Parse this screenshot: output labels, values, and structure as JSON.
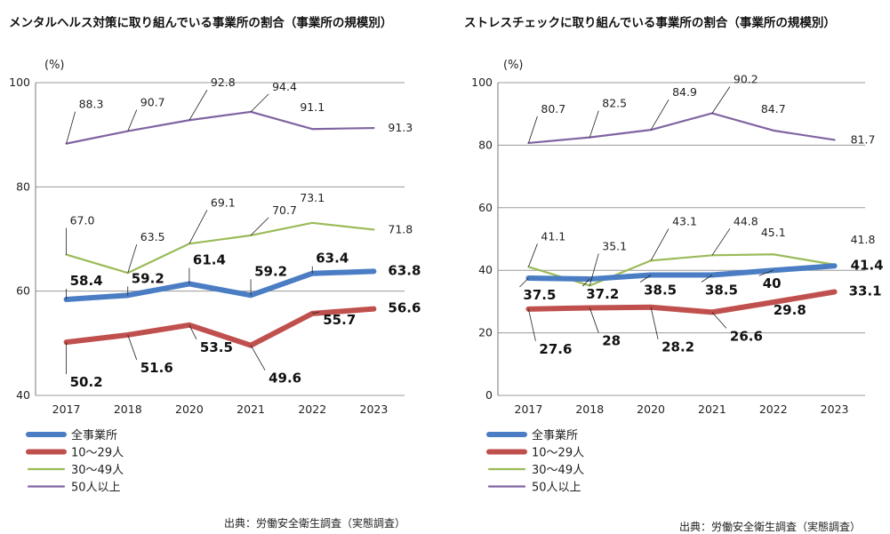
{
  "chart_data": [
    {
      "type": "line",
      "title": "メンタルヘルス対策に取り組んでいる事業所の割合（事業所の規模別）",
      "unit": "(%)",
      "categories": [
        "2017",
        "2018",
        "2020",
        "2021",
        "2022",
        "2023"
      ],
      "ylim": [
        40,
        100
      ],
      "yticks": [
        40,
        60,
        80,
        100
      ],
      "grid": true,
      "legend_position": "bottom-left",
      "series": [
        {
          "name": "全事業所",
          "values": [
            58.4,
            59.2,
            61.4,
            59.2,
            63.4,
            63.8
          ],
          "labels": [
            "58.4",
            "59.2",
            "61.4",
            "59.2",
            "63.4",
            "63.8"
          ],
          "color": "#4a7dc4",
          "bold": true
        },
        {
          "name": "10～29人",
          "values": [
            50.2,
            51.6,
            53.5,
            49.6,
            55.7,
            56.6
          ],
          "labels": [
            "50.2",
            "51.6",
            "53.5",
            "49.6",
            "55.7",
            "56.6"
          ],
          "color": "#c0504d",
          "bold": true
        },
        {
          "name": "30～49人",
          "values": [
            67.0,
            63.5,
            69.1,
            70.7,
            73.1,
            71.8
          ],
          "labels": [
            "67.0",
            "63.5",
            "69.1",
            "70.7",
            "73.1",
            "71.8"
          ],
          "color": "#9bbb59",
          "bold": false
        },
        {
          "name": "50人以上",
          "values": [
            88.3,
            90.7,
            92.8,
            94.4,
            91.1,
            91.3
          ],
          "labels": [
            "88.3",
            "90.7",
            "92.8",
            "94.4",
            "91.1",
            "91.3"
          ],
          "color": "#8064a2",
          "bold": false
        }
      ],
      "source": "出典：労働安全衛生調査（実態調査）"
    },
    {
      "type": "line",
      "title": "ストレスチェックに取り組んでいる事業所の割合（事業所の規模別）",
      "unit": "(%)",
      "categories": [
        "2017",
        "2018",
        "2020",
        "2021",
        "2022",
        "2023"
      ],
      "ylim": [
        0,
        100
      ],
      "yticks": [
        0,
        20,
        40,
        60,
        80,
        100
      ],
      "grid": true,
      "legend_position": "bottom-left",
      "series": [
        {
          "name": "全事業所",
          "values": [
            37.5,
            37.2,
            38.5,
            38.5,
            40,
            41.4
          ],
          "labels": [
            "37.5",
            "37.2",
            "38.5",
            "38.5",
            "40",
            "41.4"
          ],
          "color": "#4a7dc4",
          "bold": true
        },
        {
          "name": "10～29人",
          "values": [
            27.6,
            28,
            28.2,
            26.6,
            29.8,
            33.1
          ],
          "labels": [
            "27.6",
            "28",
            "28.2",
            "26.6",
            "29.8",
            "33.1"
          ],
          "color": "#c0504d",
          "bold": true
        },
        {
          "name": "30～49人",
          "values": [
            41.1,
            35.1,
            43.1,
            44.8,
            45.1,
            41.8
          ],
          "labels": [
            "41.1",
            "35.1",
            "43.1",
            "44.8",
            "45.1",
            "41.8"
          ],
          "color": "#9bbb59",
          "bold": false
        },
        {
          "name": "50人以上",
          "values": [
            80.7,
            82.5,
            84.9,
            90.2,
            84.7,
            81.7
          ],
          "labels": [
            "80.7",
            "82.5",
            "84.9",
            "90.2",
            "84.7",
            "81.7"
          ],
          "color": "#8064a2",
          "bold": false
        }
      ],
      "source": "出典：労働安全衛生調査（実態調査）"
    }
  ]
}
